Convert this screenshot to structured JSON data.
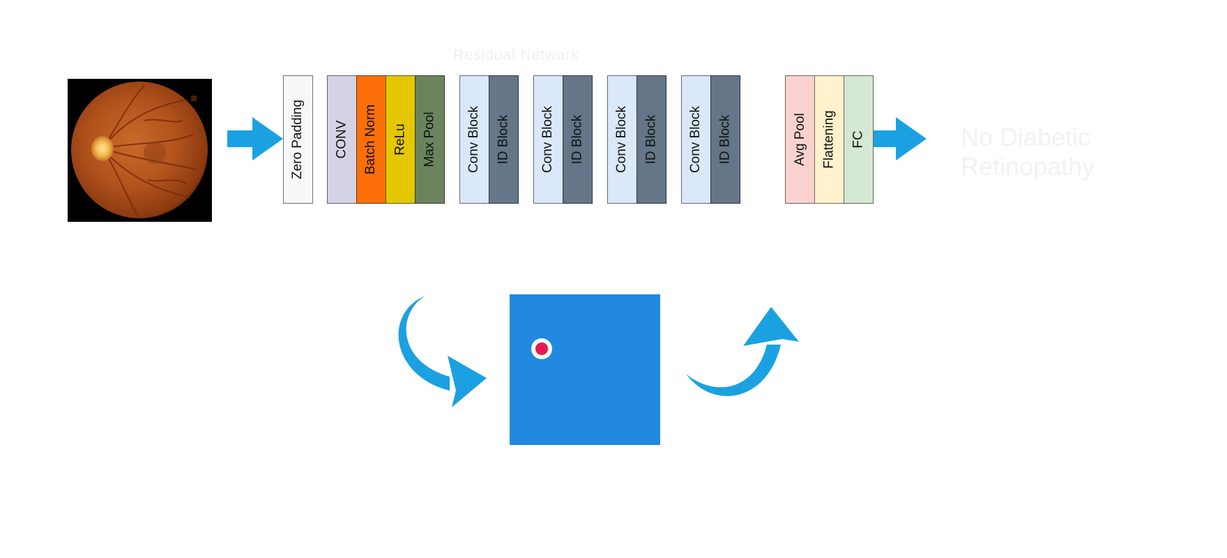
{
  "diagram": {
    "input_image": {
      "description_icon": "retina-fundus-icon"
    },
    "layers": [
      {
        "id": "zero-padding",
        "label": "Zero Padding",
        "color": "#f7f7f7"
      },
      {
        "id": "conv",
        "label": "CONV",
        "color": "#d4d3e6"
      },
      {
        "id": "batch-norm",
        "label": "Batch Norm",
        "color": "#fb6f09"
      },
      {
        "id": "relu",
        "label": "ReLu",
        "color": "#e4c700"
      },
      {
        "id": "max-pool",
        "label": "Max Pool",
        "color": "#6a845d"
      },
      {
        "id": "conv-block-1",
        "label": "Conv Block",
        "color": "#dbe8f9"
      },
      {
        "id": "id-block-1",
        "label": "ID Block",
        "color": "#647687"
      },
      {
        "id": "conv-block-2",
        "label": "Conv Block",
        "color": "#dbe8f9"
      },
      {
        "id": "id-block-2",
        "label": "ID Block",
        "color": "#647687"
      },
      {
        "id": "conv-block-3",
        "label": "Conv Block",
        "color": "#dbe8f9"
      },
      {
        "id": "id-block-3",
        "label": "ID Block",
        "color": "#647687"
      },
      {
        "id": "conv-block-4",
        "label": "Conv Block",
        "color": "#dbe8f9"
      },
      {
        "id": "id-block-4",
        "label": "ID Block",
        "color": "#647687"
      },
      {
        "id": "avg-pool",
        "label": "Avg Pool",
        "color": "#f9d2cf"
      },
      {
        "id": "flattening",
        "label": "Flattening",
        "color": "#fff2cc"
      },
      {
        "id": "fc",
        "label": "FC",
        "color": "#d5e8d4"
      }
    ],
    "faint_title": "Residual Network",
    "faint_output": "No Diabetic Retinopathy",
    "arrow_color": "#1ba1e2",
    "feature_map": {
      "color": "#2189e0",
      "marker_color": "#e8194f"
    }
  }
}
